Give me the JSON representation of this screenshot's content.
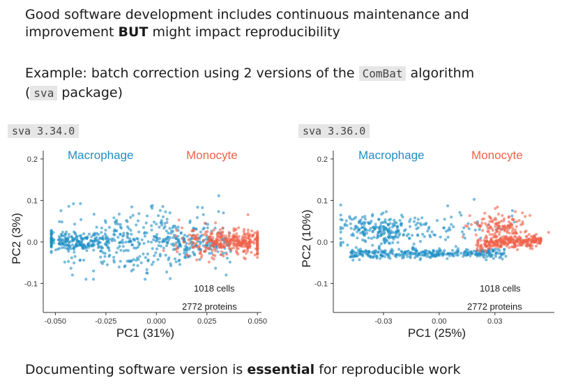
{
  "intro": {
    "line1": "Good software development includes continuous maintenance and",
    "line2_pre": "improvement ",
    "line2_bold": "BUT",
    "line2_post": " might impact reproducibility"
  },
  "example": {
    "pre": "Example: batch correction using 2 versions of the ",
    "code1": "ComBat",
    "post": " algorithm",
    "paren_open": "(",
    "code2": "sva",
    "paren_close": " package)"
  },
  "footer": {
    "pre": "Documenting software version is ",
    "bold": "essential",
    "post": " for reproducible work"
  },
  "colors": {
    "macrophage": "#1f8fc4",
    "monocyte": "#f0614a"
  },
  "chart_data": [
    {
      "type": "scatter",
      "badge": "sva 3.34.0",
      "xlabel": "PC1  (31%)",
      "ylabel": "PC2  (3%)",
      "xlim": [
        -0.056,
        0.052
      ],
      "ylim": [
        -0.17,
        0.22
      ],
      "xticks": [
        -0.05,
        -0.025,
        0.0,
        0.025,
        0.05
      ],
      "xtick_labels": [
        "-0.050",
        "-0.025",
        "0.000",
        "0.025",
        "0.050"
      ],
      "yticks": [
        0.2,
        0.1,
        0.0,
        -0.1
      ],
      "ytick_labels": [
        "0.2",
        "0.1",
        "0.0",
        "-0.1"
      ],
      "groups": [
        {
          "name": "Macrophage",
          "color": "#1f8fc4"
        },
        {
          "name": "Monocyte",
          "color": "#f0614a"
        }
      ],
      "annotations": [
        "1018 cells",
        "2772 proteins"
      ],
      "grid": false
    },
    {
      "type": "scatter",
      "badge": "sva 3.36.0",
      "xlabel": "PC1  (25%)",
      "ylabel": "PC2  (10%)",
      "xlim": [
        -0.057,
        0.062
      ],
      "ylim": [
        -0.17,
        0.22
      ],
      "xticks": [
        -0.03,
        0.0,
        0.03
      ],
      "xtick_labels": [
        "-0.03",
        "0.00",
        "0.03"
      ],
      "yticks": [
        0.2,
        0.1,
        0.0,
        -0.1
      ],
      "ytick_labels": [
        "0.2",
        "0.1",
        "0.0",
        "-0.1"
      ],
      "groups": [
        {
          "name": "Macrophage",
          "color": "#1f8fc4"
        },
        {
          "name": "Monocyte",
          "color": "#f0614a"
        }
      ],
      "annotations": [
        "1018 cells",
        "2772 proteins"
      ],
      "grid": false
    }
  ]
}
